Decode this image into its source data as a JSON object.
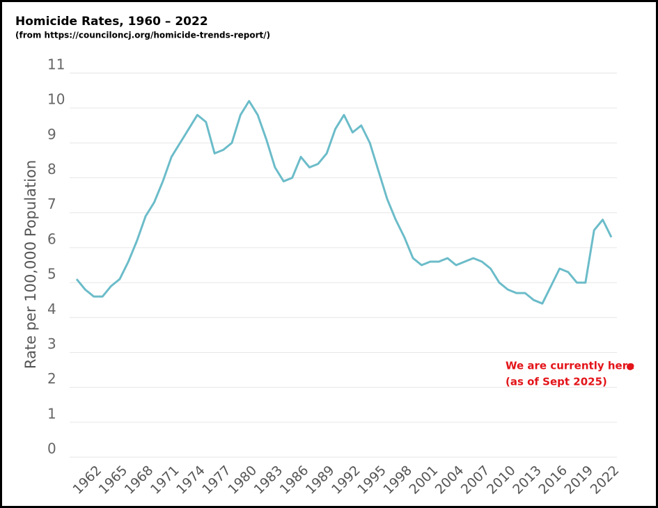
{
  "chart_data": {
    "type": "line",
    "title": "Homicide Rates, 1960 – 2022",
    "subtitle": "(from https://counciloncj.org/homicide-trends-report/)",
    "y_label": "Rate per 100,000 Population",
    "annotation": [
      "We are currently here",
      "(as of Sept 2025)"
    ],
    "annotation_color": "#e3151a",
    "x": [
      1960,
      1961,
      1962,
      1963,
      1964,
      1965,
      1966,
      1967,
      1968,
      1969,
      1970,
      1971,
      1972,
      1973,
      1974,
      1975,
      1976,
      1977,
      1978,
      1979,
      1980,
      1981,
      1982,
      1983,
      1984,
      1985,
      1986,
      1987,
      1988,
      1989,
      1990,
      1991,
      1992,
      1993,
      1994,
      1995,
      1996,
      1997,
      1998,
      1999,
      2000,
      2001,
      2002,
      2003,
      2004,
      2005,
      2006,
      2007,
      2008,
      2009,
      2010,
      2011,
      2012,
      2013,
      2014,
      2015,
      2016,
      2017,
      2018,
      2019,
      2020,
      2021,
      2022
    ],
    "series": [
      {
        "name": "Homicide rate",
        "color": "#6bbcc9",
        "values": [
          5.1,
          4.8,
          4.6,
          4.6,
          4.9,
          5.1,
          5.6,
          6.2,
          6.9,
          7.3,
          7.9,
          8.6,
          9.0,
          9.4,
          9.8,
          9.6,
          8.7,
          8.8,
          9.0,
          9.8,
          10.2,
          9.8,
          9.1,
          8.3,
          7.9,
          8.0,
          8.6,
          8.3,
          8.4,
          8.7,
          9.4,
          9.8,
          9.3,
          9.5,
          9.0,
          8.2,
          7.4,
          6.8,
          6.3,
          5.7,
          5.5,
          5.6,
          5.6,
          5.7,
          5.5,
          5.6,
          5.7,
          5.6,
          5.4,
          5.0,
          4.8,
          4.7,
          4.7,
          4.5,
          4.4,
          4.9,
          5.4,
          5.3,
          5.0,
          5.0,
          6.5,
          6.8,
          6.3
        ]
      }
    ],
    "xlim": [
      1960,
      2022
    ],
    "xticks": [
      1962,
      1965,
      1968,
      1971,
      1974,
      1977,
      1980,
      1983,
      1986,
      1989,
      1992,
      1995,
      1998,
      2001,
      2004,
      2007,
      2010,
      2013,
      2016,
      2019,
      2022
    ],
    "ylim": [
      0,
      11
    ],
    "yticks": [
      0,
      1,
      2,
      3,
      4,
      5,
      6,
      7,
      8,
      9,
      10,
      11
    ],
    "grid": true
  }
}
